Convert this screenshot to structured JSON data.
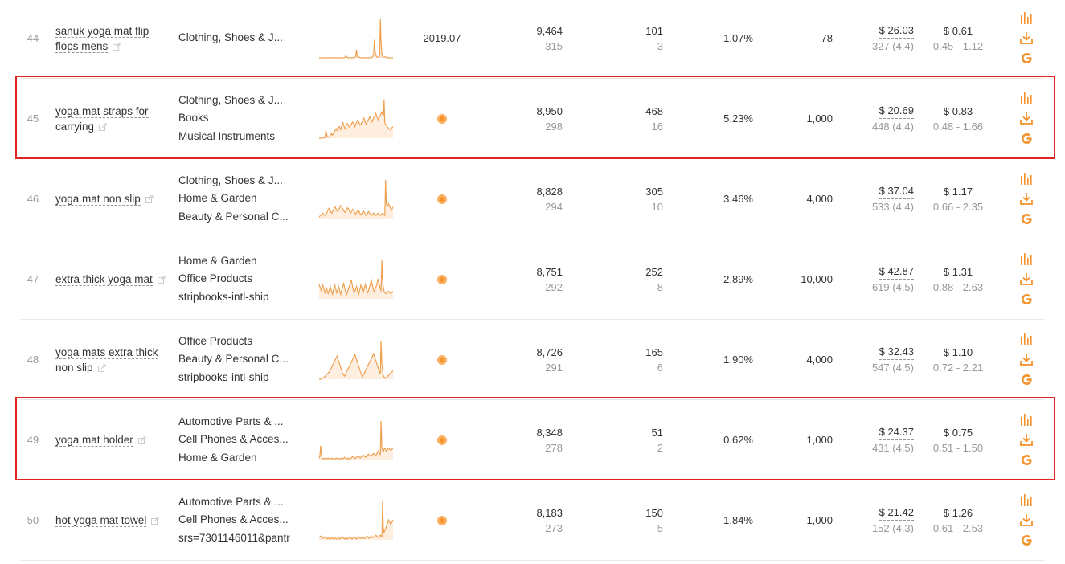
{
  "currency_symbol": "$",
  "icons": {
    "external": "external-link-icon",
    "status": "status-dot-icon",
    "chart": "bar-chart-icon",
    "download": "download-icon",
    "google": "google-icon"
  },
  "colors": {
    "accent": "#f5932b",
    "highlight_border": "#e02424",
    "trend_line": "#f0a050",
    "trend_fill": "#fdeee0"
  },
  "rows": [
    {
      "rank": "44",
      "keyword": "sanuk yoga mat flip flops mens",
      "categories": [
        "Clothing, Shoes & J..."
      ],
      "date": "2019.07",
      "search_volume": "9,464",
      "search_sub": "315",
      "products": "101",
      "products_sub": "3",
      "ratio": "1.07%",
      "competition": "78",
      "price": "26.03",
      "reviews": "327 (4.4)",
      "cpc": "$ 0.61",
      "cpc_range": "0.45 - 1.12",
      "highlighted": false,
      "trend": [
        0,
        0,
        0,
        0,
        0,
        0,
        0,
        0,
        0,
        0,
        0,
        0,
        0,
        0,
        0,
        0,
        0,
        0,
        0,
        1,
        0,
        0,
        0,
        0,
        0,
        0,
        0,
        0,
        0,
        0,
        0,
        0,
        0,
        0,
        1,
        2,
        6,
        2,
        1,
        0,
        0,
        0,
        0,
        0,
        0,
        0,
        0,
        0,
        1,
        3,
        20,
        4,
        1,
        2,
        1,
        0,
        0,
        0,
        1,
        0,
        0,
        0,
        0,
        0,
        0,
        0,
        0,
        0,
        0,
        1,
        0,
        2,
        4,
        10,
        45,
        15,
        6,
        3,
        2,
        1,
        2,
        3,
        96,
        40,
        8,
        3,
        2,
        1,
        2,
        3,
        1,
        0,
        0,
        0,
        0,
        0,
        0,
        0,
        0,
        0
      ]
    },
    {
      "rank": "45",
      "keyword": "yoga mat straps for carrying",
      "categories": [
        "Clothing, Shoes & J...",
        "Books",
        "Musical Instruments"
      ],
      "date": "",
      "search_volume": "8,950",
      "search_sub": "298",
      "products": "468",
      "products_sub": "16",
      "ratio": "5.23%",
      "competition": "1,000",
      "price": "20.69",
      "reviews": "448 (4.4)",
      "cpc": "$ 0.83",
      "cpc_range": "0.48 - 1.66",
      "highlighted": true,
      "trend": [
        0,
        0,
        0,
        1,
        2,
        1,
        0,
        1,
        2,
        20,
        12,
        4,
        2,
        3,
        5,
        8,
        12,
        10,
        8,
        12,
        15,
        18,
        22,
        25,
        20,
        24,
        28,
        30,
        26,
        22,
        30,
        35,
        40,
        32,
        28,
        24,
        30,
        36,
        38,
        34,
        30,
        28,
        32,
        36,
        40,
        42,
        38,
        34,
        30,
        36,
        40,
        45,
        48,
        42,
        38,
        34,
        36,
        40,
        44,
        48,
        52,
        46,
        40,
        36,
        40,
        44,
        48,
        52,
        56,
        50,
        46,
        42,
        48,
        52,
        56,
        60,
        64,
        58,
        52,
        48,
        52,
        56,
        60,
        64,
        68,
        62,
        56,
        100,
        40,
        36,
        34,
        30,
        28,
        26,
        24,
        22,
        24,
        26,
        28,
        30
      ]
    },
    {
      "rank": "46",
      "keyword": "yoga mat non slip",
      "categories": [
        "Clothing, Shoes & J...",
        "Home & Garden",
        "Beauty & Personal C..."
      ],
      "date": "",
      "search_volume": "8,828",
      "search_sub": "294",
      "products": "305",
      "products_sub": "10",
      "ratio": "3.46%",
      "competition": "4,000",
      "price": "37.04",
      "reviews": "533 (4.4)",
      "cpc": "$ 1.17",
      "cpc_range": "0.66 - 2.35",
      "highlighted": false,
      "trend": [
        4,
        6,
        8,
        10,
        12,
        14,
        12,
        10,
        8,
        10,
        14,
        18,
        22,
        26,
        24,
        20,
        16,
        14,
        18,
        22,
        26,
        30,
        28,
        24,
        20,
        18,
        22,
        26,
        30,
        34,
        32,
        28,
        24,
        20,
        18,
        16,
        20,
        24,
        28,
        26,
        22,
        18,
        14,
        16,
        20,
        24,
        22,
        18,
        14,
        12,
        14,
        18,
        22,
        20,
        16,
        12,
        10,
        12,
        16,
        20,
        18,
        14,
        10,
        8,
        10,
        14,
        18,
        16,
        12,
        10,
        8,
        10,
        12,
        14,
        12,
        10,
        8,
        10,
        12,
        14,
        12,
        10,
        8,
        10,
        12,
        14,
        12,
        10,
        8,
        100,
        40,
        30,
        34,
        38,
        34,
        30,
        26,
        22,
        26,
        30
      ]
    },
    {
      "rank": "47",
      "keyword": "extra thick yoga mat",
      "categories": [
        "Home & Garden",
        "Office Products",
        "stripbooks-intl-ship"
      ],
      "date": "",
      "search_volume": "8,751",
      "search_sub": "292",
      "products": "252",
      "products_sub": "8",
      "ratio": "2.89%",
      "competition": "10,000",
      "price": "42.87",
      "reviews": "619 (4.5)",
      "cpc": "$ 1.31",
      "cpc_range": "0.88 - 2.63",
      "highlighted": false,
      "trend": [
        38,
        32,
        26,
        20,
        30,
        36,
        28,
        22,
        16,
        24,
        30,
        20,
        14,
        20,
        26,
        32,
        24,
        18,
        12,
        22,
        30,
        36,
        28,
        20,
        14,
        24,
        32,
        26,
        18,
        12,
        20,
        28,
        34,
        40,
        30,
        22,
        16,
        12,
        18,
        24,
        30,
        36,
        42,
        50,
        40,
        30,
        22,
        16,
        20,
        26,
        32,
        24,
        18,
        12,
        20,
        28,
        36,
        30,
        22,
        16,
        24,
        32,
        38,
        30,
        22,
        16,
        20,
        28,
        34,
        42,
        48,
        38,
        30,
        22,
        18,
        24,
        30,
        36,
        44,
        52,
        42,
        34,
        26,
        20,
        100,
        50,
        30,
        20,
        16,
        14,
        14,
        16,
        18,
        20,
        18,
        16,
        14,
        16,
        18,
        20
      ]
    },
    {
      "rank": "48",
      "keyword": "yoga mats extra thick non slip",
      "categories": [
        "Office Products",
        "Beauty & Personal C...",
        "stripbooks-intl-ship"
      ],
      "date": "",
      "search_volume": "8,726",
      "search_sub": "291",
      "products": "165",
      "products_sub": "6",
      "ratio": "1.90%",
      "competition": "4,000",
      "price": "32.43",
      "reviews": "547 (4.5)",
      "cpc": "$ 1.10",
      "cpc_range": "0.72 - 2.21",
      "highlighted": false,
      "trend": [
        0,
        0,
        0,
        1,
        2,
        3,
        4,
        6,
        8,
        10,
        12,
        14,
        16,
        18,
        20,
        24,
        28,
        32,
        36,
        40,
        44,
        48,
        52,
        56,
        60,
        54,
        48,
        42,
        36,
        30,
        24,
        18,
        14,
        10,
        8,
        12,
        16,
        20,
        24,
        28,
        32,
        36,
        40,
        44,
        48,
        52,
        56,
        60,
        64,
        58,
        52,
        46,
        40,
        34,
        28,
        22,
        16,
        10,
        6,
        10,
        14,
        18,
        22,
        26,
        30,
        34,
        38,
        42,
        46,
        50,
        54,
        58,
        62,
        66,
        60,
        54,
        48,
        42,
        36,
        30,
        24,
        18,
        14,
        100,
        40,
        20,
        10,
        6,
        4,
        2,
        4,
        6,
        8,
        10,
        12,
        14,
        16,
        18,
        20,
        22
      ]
    },
    {
      "rank": "49",
      "keyword": "yoga mat holder",
      "categories": [
        "Automotive Parts & ...",
        "Cell Phones & Acces...",
        "Home & Garden"
      ],
      "date": "",
      "search_volume": "8,348",
      "search_sub": "278",
      "products": "51",
      "products_sub": "2",
      "ratio": "0.62%",
      "competition": "1,000",
      "price": "24.37",
      "reviews": "431 (4.5)",
      "cpc": "$ 0.75",
      "cpc_range": "0.51 - 1.50",
      "highlighted": true,
      "trend": [
        4,
        8,
        36,
        12,
        4,
        2,
        2,
        4,
        2,
        2,
        2,
        2,
        4,
        2,
        2,
        2,
        2,
        4,
        2,
        2,
        2,
        2,
        2,
        4,
        2,
        2,
        2,
        2,
        2,
        2,
        4,
        2,
        2,
        4,
        6,
        4,
        2,
        2,
        2,
        4,
        2,
        2,
        2,
        4,
        6,
        8,
        6,
        4,
        2,
        4,
        6,
        8,
        10,
        8,
        6,
        4,
        6,
        8,
        10,
        12,
        10,
        8,
        6,
        8,
        10,
        12,
        14,
        12,
        10,
        8,
        10,
        12,
        14,
        16,
        14,
        12,
        10,
        14,
        18,
        22,
        20,
        16,
        12,
        100,
        30,
        24,
        20,
        26,
        30,
        26,
        22,
        24,
        28,
        30,
        28,
        26,
        24,
        26,
        28,
        30
      ]
    },
    {
      "rank": "50",
      "keyword": "hot yoga mat towel",
      "categories": [
        "Automotive Parts & ...",
        "Cell Phones & Acces...",
        "srs=7301146011&pantr"
      ],
      "date": "",
      "search_volume": "8,183",
      "search_sub": "273",
      "products": "150",
      "products_sub": "5",
      "ratio": "1.84%",
      "competition": "1,000",
      "price": "21.42",
      "reviews": "152 (4.3)",
      "cpc": "$ 1.26",
      "cpc_range": "0.61 - 2.53",
      "highlighted": false,
      "trend": [
        6,
        8,
        10,
        8,
        6,
        4,
        6,
        8,
        6,
        4,
        2,
        4,
        6,
        4,
        2,
        2,
        4,
        6,
        4,
        2,
        4,
        6,
        4,
        2,
        2,
        4,
        6,
        4,
        2,
        4,
        6,
        8,
        6,
        4,
        2,
        4,
        6,
        4,
        2,
        4,
        6,
        8,
        6,
        4,
        2,
        4,
        6,
        8,
        6,
        4,
        2,
        4,
        6,
        8,
        6,
        4,
        4,
        6,
        8,
        6,
        4,
        4,
        6,
        8,
        10,
        8,
        6,
        4,
        6,
        8,
        10,
        8,
        6,
        6,
        8,
        10,
        12,
        10,
        8,
        6,
        8,
        10,
        12,
        10,
        8,
        100,
        30,
        20,
        24,
        28,
        34,
        40,
        46,
        52,
        48,
        44,
        40,
        44,
        48,
        52
      ]
    }
  ]
}
